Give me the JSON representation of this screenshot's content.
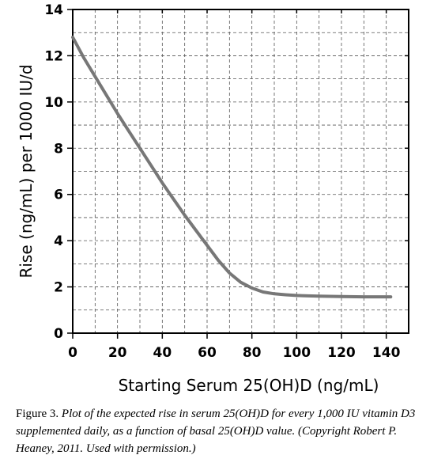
{
  "chart_data": {
    "type": "line",
    "title": "",
    "xlabel": "Starting Serum 25(OH)D (ng/mL)",
    "ylabel": "Rise (ng/mL) per 1000 IU/d",
    "xlim": [
      0,
      150
    ],
    "ylim": [
      0,
      14
    ],
    "x_ticks": [
      0,
      20,
      40,
      60,
      80,
      100,
      120,
      140
    ],
    "y_ticks": [
      0,
      2,
      4,
      6,
      8,
      10,
      12,
      14
    ],
    "grid": true,
    "curve_color": "#777777",
    "series": [
      {
        "x": [
          0,
          5,
          10,
          15,
          20,
          25,
          30,
          35,
          40,
          45,
          50,
          55,
          60,
          65,
          70,
          75,
          80,
          85,
          90,
          95,
          100,
          110,
          120,
          130,
          142
        ],
        "y": [
          12.8,
          11.9,
          11.1,
          10.3,
          9.5,
          8.75,
          8.0,
          7.25,
          6.5,
          5.8,
          5.1,
          4.45,
          3.8,
          3.15,
          2.6,
          2.2,
          1.95,
          1.78,
          1.7,
          1.66,
          1.63,
          1.6,
          1.58,
          1.57,
          1.57
        ]
      }
    ]
  },
  "caption": {
    "lead": "Figure 3.",
    "text": "Plot of the expected rise in serum 25(OH)D for every 1,000 IU vitamin D3 supplemented daily, as a function of basal 25(OH)D value. (Copyright Robert P. Heaney, 2011. Used with permission.)"
  }
}
